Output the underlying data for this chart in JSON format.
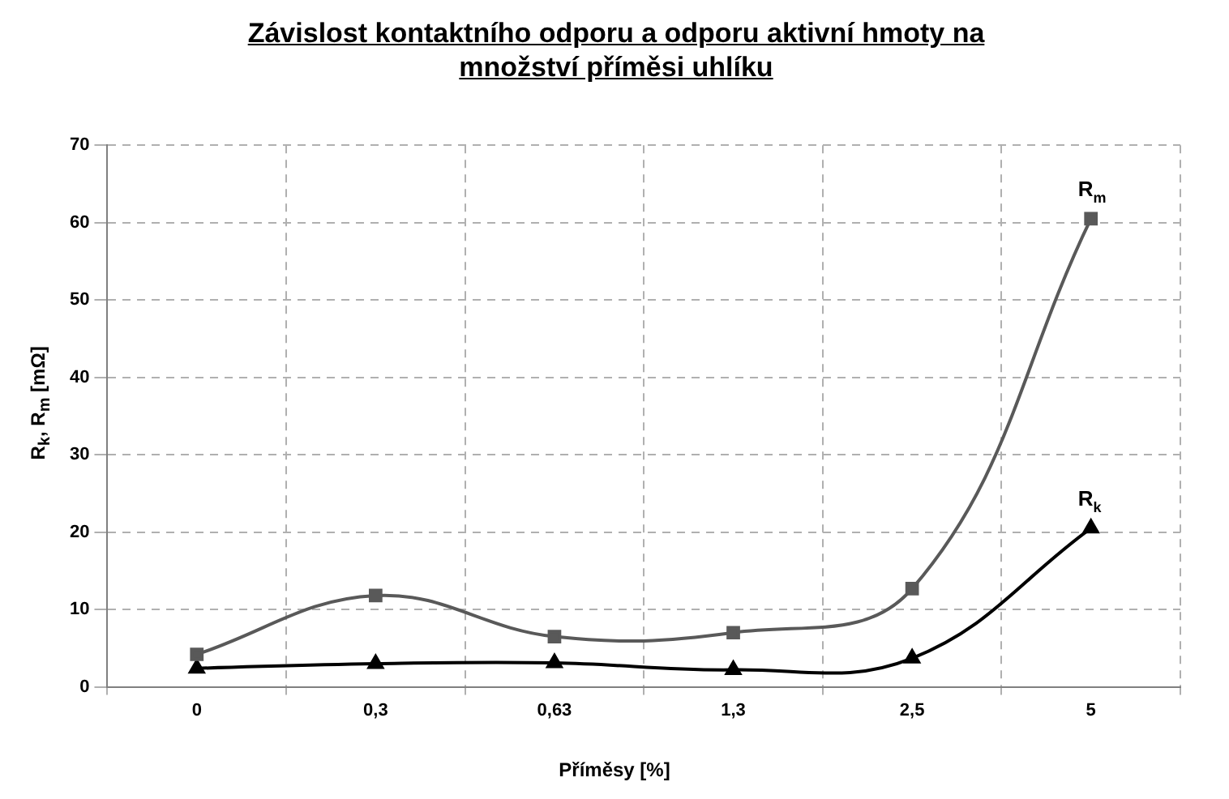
{
  "chart_data": {
    "type": "line",
    "title": "Závislost kontaktního odporu a odporu aktivní hmoty na množství příměsi uhlíku",
    "xlabel": "Příměsy [%]",
    "ylabel": "R$_{k}$, R$_{m}$ [mΩ]",
    "categories": [
      "0",
      "0,3",
      "0,63",
      "1,3",
      "2,5",
      "5"
    ],
    "series": [
      {
        "name": "R$_{m}$",
        "color": "#595959",
        "marker": "square",
        "values": [
          4.2,
          11.8,
          6.5,
          7.0,
          12.7,
          60.5
        ]
      },
      {
        "name": "R$_{k}$",
        "color": "#000000",
        "marker": "triangle",
        "values": [
          2.4,
          3.0,
          3.1,
          2.2,
          3.7,
          20.5
        ]
      }
    ],
    "ylim": [
      0,
      70
    ],
    "yticks": [
      0,
      10,
      20,
      30,
      40,
      50,
      60,
      70
    ],
    "grid": true,
    "legend": false
  }
}
